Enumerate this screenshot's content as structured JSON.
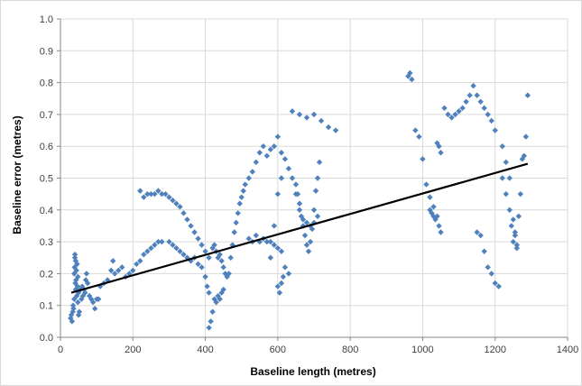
{
  "chart_data": {
    "type": "scatter",
    "title": "",
    "xlabel": "Baseline length (metres)",
    "ylabel": "Baseline error (metres)",
    "xlim": [
      0,
      1400
    ],
    "ylim": [
      0,
      1.0
    ],
    "x_ticks": [
      "0",
      "200",
      "400",
      "600",
      "800",
      "1000",
      "1200",
      "1400"
    ],
    "y_ticks": [
      "0.0",
      "0.1",
      "0.2",
      "0.3",
      "0.4",
      "0.5",
      "0.6",
      "0.7",
      "0.8",
      "0.9",
      "1.0"
    ],
    "grid": true,
    "legend": "none",
    "marker_color": "#4f81bd",
    "trendline_color": "#000000",
    "trendline": {
      "x": [
        30,
        1290
      ],
      "y": [
        0.14,
        0.545
      ]
    },
    "series": [
      {
        "points": [
          [
            28,
            0.06
          ],
          [
            30,
            0.07
          ],
          [
            32,
            0.05
          ],
          [
            34,
            0.08
          ],
          [
            35,
            0.1
          ],
          [
            36,
            0.09
          ],
          [
            38,
            0.12
          ],
          [
            38,
            0.2
          ],
          [
            39,
            0.22
          ],
          [
            40,
            0.25
          ],
          [
            40,
            0.26
          ],
          [
            41,
            0.17
          ],
          [
            42,
            0.15
          ],
          [
            42,
            0.24
          ],
          [
            43,
            0.18
          ],
          [
            44,
            0.21
          ],
          [
            45,
            0.13
          ],
          [
            46,
            0.23
          ],
          [
            47,
            0.16
          ],
          [
            48,
            0.19
          ],
          [
            48,
            0.11
          ],
          [
            50,
            0.14
          ],
          [
            50,
            0.07
          ],
          [
            52,
            0.08
          ],
          [
            55,
            0.15
          ],
          [
            58,
            0.12
          ],
          [
            60,
            0.16
          ],
          [
            62,
            0.13
          ],
          [
            65,
            0.15
          ],
          [
            68,
            0.14
          ],
          [
            70,
            0.18
          ],
          [
            72,
            0.2
          ],
          [
            75,
            0.17
          ],
          [
            80,
            0.13
          ],
          [
            85,
            0.12
          ],
          [
            90,
            0.11
          ],
          [
            95,
            0.09
          ],
          [
            100,
            0.12
          ],
          [
            105,
            0.12
          ],
          [
            110,
            0.16
          ],
          [
            120,
            0.17
          ],
          [
            130,
            0.18
          ],
          [
            140,
            0.21
          ],
          [
            145,
            0.24
          ],
          [
            150,
            0.2
          ],
          [
            160,
            0.21
          ],
          [
            170,
            0.22
          ],
          [
            180,
            0.19
          ],
          [
            190,
            0.2
          ],
          [
            200,
            0.21
          ],
          [
            210,
            0.23
          ],
          [
            220,
            0.24
          ],
          [
            230,
            0.26
          ],
          [
            240,
            0.27
          ],
          [
            250,
            0.28
          ],
          [
            260,
            0.29
          ],
          [
            270,
            0.3
          ],
          [
            280,
            0.3
          ],
          [
            220,
            0.46
          ],
          [
            230,
            0.44
          ],
          [
            240,
            0.45
          ],
          [
            250,
            0.45
          ],
          [
            260,
            0.45
          ],
          [
            270,
            0.46
          ],
          [
            280,
            0.45
          ],
          [
            290,
            0.45
          ],
          [
            300,
            0.44
          ],
          [
            310,
            0.43
          ],
          [
            320,
            0.42
          ],
          [
            330,
            0.41
          ],
          [
            340,
            0.39
          ],
          [
            350,
            0.37
          ],
          [
            360,
            0.35
          ],
          [
            370,
            0.33
          ],
          [
            380,
            0.31
          ],
          [
            390,
            0.29
          ],
          [
            400,
            0.27
          ],
          [
            410,
            0.25
          ],
          [
            300,
            0.3
          ],
          [
            310,
            0.29
          ],
          [
            320,
            0.28
          ],
          [
            330,
            0.27
          ],
          [
            340,
            0.26
          ],
          [
            350,
            0.25
          ],
          [
            360,
            0.24
          ],
          [
            370,
            0.25
          ],
          [
            380,
            0.23
          ],
          [
            390,
            0.22
          ],
          [
            400,
            0.19
          ],
          [
            405,
            0.16
          ],
          [
            410,
            0.14
          ],
          [
            410,
            0.03
          ],
          [
            415,
            0.05
          ],
          [
            420,
            0.08
          ],
          [
            425,
            0.12
          ],
          [
            430,
            0.11
          ],
          [
            435,
            0.13
          ],
          [
            440,
            0.12
          ],
          [
            445,
            0.14
          ],
          [
            450,
            0.15
          ],
          [
            420,
            0.28
          ],
          [
            425,
            0.29
          ],
          [
            430,
            0.27
          ],
          [
            435,
            0.25
          ],
          [
            440,
            0.26
          ],
          [
            445,
            0.24
          ],
          [
            450,
            0.22
          ],
          [
            455,
            0.2
          ],
          [
            460,
            0.19
          ],
          [
            465,
            0.2
          ],
          [
            470,
            0.25
          ],
          [
            475,
            0.29
          ],
          [
            480,
            0.33
          ],
          [
            485,
            0.36
          ],
          [
            490,
            0.39
          ],
          [
            495,
            0.42
          ],
          [
            500,
            0.44
          ],
          [
            505,
            0.46
          ],
          [
            510,
            0.48
          ],
          [
            520,
            0.5
          ],
          [
            530,
            0.52
          ],
          [
            540,
            0.55
          ],
          [
            550,
            0.58
          ],
          [
            560,
            0.6
          ],
          [
            570,
            0.57
          ],
          [
            580,
            0.59
          ],
          [
            590,
            0.6
          ],
          [
            600,
            0.63
          ],
          [
            610,
            0.58
          ],
          [
            620,
            0.56
          ],
          [
            630,
            0.53
          ],
          [
            640,
            0.5
          ],
          [
            650,
            0.45
          ],
          [
            660,
            0.4
          ],
          [
            670,
            0.37
          ],
          [
            680,
            0.36
          ],
          [
            690,
            0.35
          ],
          [
            700,
            0.36
          ],
          [
            710,
            0.38
          ],
          [
            520,
            0.31
          ],
          [
            530,
            0.3
          ],
          [
            540,
            0.32
          ],
          [
            550,
            0.3
          ],
          [
            560,
            0.31
          ],
          [
            570,
            0.3
          ],
          [
            580,
            0.3
          ],
          [
            590,
            0.29
          ],
          [
            600,
            0.28
          ],
          [
            610,
            0.27
          ],
          [
            620,
            0.22
          ],
          [
            630,
            0.2
          ],
          [
            600,
            0.16
          ],
          [
            605,
            0.14
          ],
          [
            610,
            0.17
          ],
          [
            615,
            0.19
          ],
          [
            580,
            0.25
          ],
          [
            590,
            0.35
          ],
          [
            600,
            0.45
          ],
          [
            610,
            0.5
          ],
          [
            640,
            0.71
          ],
          [
            660,
            0.7
          ],
          [
            680,
            0.69
          ],
          [
            700,
            0.7
          ],
          [
            720,
            0.68
          ],
          [
            740,
            0.66
          ],
          [
            760,
            0.65
          ],
          [
            650,
            0.48
          ],
          [
            655,
            0.45
          ],
          [
            660,
            0.42
          ],
          [
            665,
            0.38
          ],
          [
            670,
            0.35
          ],
          [
            675,
            0.32
          ],
          [
            680,
            0.29
          ],
          [
            685,
            0.27
          ],
          [
            690,
            0.3
          ],
          [
            695,
            0.34
          ],
          [
            700,
            0.4
          ],
          [
            705,
            0.46
          ],
          [
            710,
            0.5
          ],
          [
            715,
            0.55
          ],
          [
            960,
            0.82
          ],
          [
            965,
            0.83
          ],
          [
            970,
            0.81
          ],
          [
            980,
            0.65
          ],
          [
            990,
            0.63
          ],
          [
            1000,
            0.56
          ],
          [
            1010,
            0.48
          ],
          [
            1020,
            0.44
          ],
          [
            1030,
            0.41
          ],
          [
            1040,
            0.38
          ],
          [
            1045,
            0.35
          ],
          [
            1050,
            0.33
          ],
          [
            1040,
            0.61
          ],
          [
            1045,
            0.6
          ],
          [
            1050,
            0.58
          ],
          [
            1060,
            0.72
          ],
          [
            1070,
            0.7
          ],
          [
            1080,
            0.69
          ],
          [
            1090,
            0.7
          ],
          [
            1100,
            0.71
          ],
          [
            1110,
            0.72
          ],
          [
            1120,
            0.74
          ],
          [
            1130,
            0.76
          ],
          [
            1140,
            0.79
          ],
          [
            1150,
            0.76
          ],
          [
            1160,
            0.74
          ],
          [
            1170,
            0.72
          ],
          [
            1180,
            0.7
          ],
          [
            1190,
            0.68
          ],
          [
            1200,
            0.65
          ],
          [
            1150,
            0.33
          ],
          [
            1160,
            0.32
          ],
          [
            1170,
            0.27
          ],
          [
            1180,
            0.22
          ],
          [
            1190,
            0.2
          ],
          [
            1200,
            0.17
          ],
          [
            1210,
            0.16
          ],
          [
            1220,
            0.5
          ],
          [
            1230,
            0.45
          ],
          [
            1240,
            0.4
          ],
          [
            1245,
            0.35
          ],
          [
            1250,
            0.3
          ],
          [
            1255,
            0.33
          ],
          [
            1260,
            0.28
          ],
          [
            1265,
            0.38
          ],
          [
            1270,
            0.45
          ],
          [
            1275,
            0.56
          ],
          [
            1280,
            0.57
          ],
          [
            1285,
            0.63
          ],
          [
            1290,
            0.76
          ],
          [
            1020,
            0.4
          ],
          [
            1025,
            0.39
          ],
          [
            1030,
            0.38
          ],
          [
            1035,
            0.37
          ],
          [
            1220,
            0.6
          ],
          [
            1230,
            0.55
          ],
          [
            1240,
            0.5
          ],
          [
            1250,
            0.37
          ],
          [
            1255,
            0.32
          ],
          [
            1260,
            0.29
          ]
        ]
      }
    ]
  }
}
